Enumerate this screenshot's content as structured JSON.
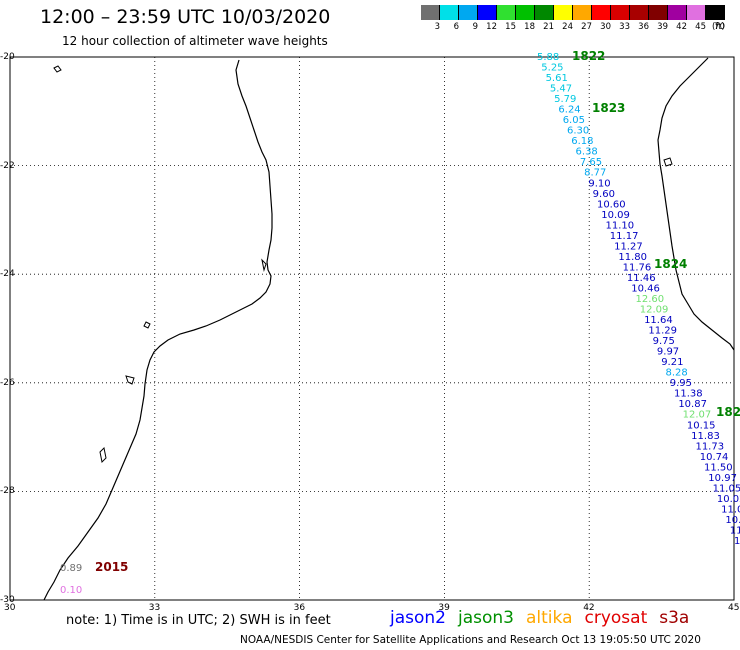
{
  "header": {
    "title": "12:00 – 23:59 UTC 10/03/2020",
    "subtitle": "12 hour collection of altimeter wave heights"
  },
  "legend": {
    "unit": "(ft)",
    "bins": [
      {
        "label": "3",
        "color": "#707070"
      },
      {
        "label": "6",
        "color": "#00e0e8"
      },
      {
        "label": "9",
        "color": "#00a8f0"
      },
      {
        "label": "12",
        "color": "#0000ff"
      },
      {
        "label": "15",
        "color": "#30e030"
      },
      {
        "label": "18",
        "color": "#00c000"
      },
      {
        "label": "21",
        "color": "#008800"
      },
      {
        "label": "24",
        "color": "#ffff00"
      },
      {
        "label": "27",
        "color": "#ffa800"
      },
      {
        "label": "30",
        "color": "#ff0000"
      },
      {
        "label": "33",
        "color": "#d80000"
      },
      {
        "label": "36",
        "color": "#a80000"
      },
      {
        "label": "39",
        "color": "#800000"
      },
      {
        "label": "42",
        "color": "#a000a0"
      },
      {
        "label": "45",
        "color": "#e070e0"
      },
      {
        "label": "70",
        "color": "#000000"
      }
    ]
  },
  "map": {
    "lat_labels": [
      "-20",
      "-22",
      "-24",
      "-26",
      "-28",
      "-30"
    ],
    "lon_labels": [
      "30",
      "33",
      "36",
      "39",
      "42",
      "45"
    ],
    "track_labels": [
      {
        "text": "1822",
        "color": "#008000"
      },
      {
        "text": "1823",
        "color": "#008000"
      },
      {
        "text": "1824",
        "color": "#008000"
      },
      {
        "text": "182",
        "color": "#008000"
      },
      {
        "text": "2015",
        "color": "#800000"
      }
    ],
    "track_a": [
      {
        "v": "5.88",
        "c": "#00c8e0"
      },
      {
        "v": "5.25",
        "c": "#00c8e0"
      },
      {
        "v": "5.61",
        "c": "#00c8e0"
      },
      {
        "v": "5.47",
        "c": "#00c8e0"
      },
      {
        "v": "5.79",
        "c": "#00c8e0"
      },
      {
        "v": "6.24",
        "c": "#00a8f0"
      },
      {
        "v": "6.05",
        "c": "#00a8f0"
      },
      {
        "v": "6.30",
        "c": "#00a8f0"
      },
      {
        "v": "6.18",
        "c": "#00a8f0"
      },
      {
        "v": "6.38",
        "c": "#00a8f0"
      },
      {
        "v": "7.65",
        "c": "#00a8f0"
      },
      {
        "v": "8.77",
        "c": "#00a8f0"
      },
      {
        "v": "9.10",
        "c": "#0000c0"
      },
      {
        "v": "9.60",
        "c": "#0000c0"
      },
      {
        "v": "10.60",
        "c": "#0000c0"
      },
      {
        "v": "10.09",
        "c": "#0000c0"
      },
      {
        "v": "11.10",
        "c": "#0000c0"
      },
      {
        "v": "11.17",
        "c": "#0000c0"
      },
      {
        "v": "11.27",
        "c": "#0000c0"
      },
      {
        "v": "11.80",
        "c": "#0000c0"
      },
      {
        "v": "11.76",
        "c": "#0000c0"
      },
      {
        "v": "11.46",
        "c": "#0000c0"
      },
      {
        "v": "10.46",
        "c": "#0000c0"
      },
      {
        "v": "12.60",
        "c": "#70e070"
      },
      {
        "v": "12.09",
        "c": "#70e070"
      },
      {
        "v": "11.64",
        "c": "#0000c0"
      },
      {
        "v": "11.29",
        "c": "#0000c0"
      },
      {
        "v": "9.75",
        "c": "#0000c0"
      },
      {
        "v": "9.97",
        "c": "#0000c0"
      },
      {
        "v": "9.21",
        "c": "#0000c0"
      },
      {
        "v": "8.28",
        "c": "#00a8f0"
      },
      {
        "v": "9.95",
        "c": "#0000c0"
      },
      {
        "v": "11.38",
        "c": "#0000c0"
      },
      {
        "v": "10.87",
        "c": "#0000c0"
      },
      {
        "v": "12.07",
        "c": "#70e070"
      },
      {
        "v": "10.15",
        "c": "#0000c0"
      },
      {
        "v": "11.83",
        "c": "#0000c0"
      },
      {
        "v": "11.73",
        "c": "#0000c0"
      },
      {
        "v": "10.74",
        "c": "#0000c0"
      },
      {
        "v": "11.50",
        "c": "#0000c0"
      },
      {
        "v": "10.97",
        "c": "#0000c0"
      },
      {
        "v": "11.05",
        "c": "#0000c0"
      },
      {
        "v": "10.02",
        "c": "#0000c0"
      },
      {
        "v": "11.0",
        "c": "#0000c0"
      },
      {
        "v": "10.",
        "c": "#0000c0"
      },
      {
        "v": "11",
        "c": "#0000c0"
      },
      {
        "v": "1",
        "c": "#0000c0"
      }
    ],
    "track_b": [
      {
        "v": "0.89",
        "c": "#707070"
      },
      {
        "v": "0.10",
        "c": "#e070e0"
      }
    ]
  },
  "footer": {
    "note": "note:  1) Time is in UTC;  2) SWH is in feet",
    "satellites": [
      {
        "name": "jason2",
        "color": "#0000ff"
      },
      {
        "name": "jason3",
        "color": "#009000"
      },
      {
        "name": "altika",
        "color": "#ffa800"
      },
      {
        "name": "cryosat",
        "color": "#e00000"
      },
      {
        "name": "s3a",
        "color": "#a00000"
      }
    ],
    "credit": "NOAA/NESDIS Center for Satellite Applications and Research    Oct 13 19:05:50 UTC 2020"
  }
}
